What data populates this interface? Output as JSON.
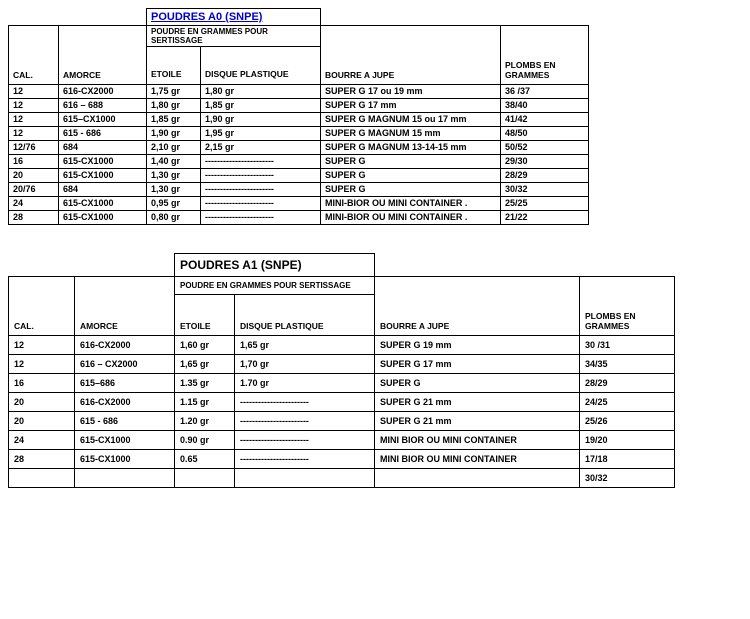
{
  "table1": {
    "title": "POUDRES A0 (SNPE)",
    "subheader": "POUDRE EN GRAMMES POUR SERTISSAGE",
    "headers": {
      "cal": "CAL.",
      "amorce": "AMORCE",
      "etoile": "ETOILE",
      "disque": "DISQUE PLASTIQUE",
      "bourre": "BOURRE A JUPE",
      "plombs": "PLOMBS EN GRAMMES"
    },
    "rows": [
      {
        "cal": "12",
        "am": "616-CX2000",
        "et": "1,75 gr",
        "dp": "1,80 gr",
        "bj": "SUPER G 17 ou 19 mm",
        "pl": "36 /37"
      },
      {
        "cal": "12",
        "am": "616 – 688",
        "et": "1,80 gr",
        "dp": "1,85 gr",
        "bj": "SUPER G 17 mm",
        "pl": "38/40"
      },
      {
        "cal": "12",
        "am": "615–CX1000",
        "et": "1,85 gr",
        "dp": "1,90 gr",
        "bj": "SUPER G MAGNUM 15 ou 17 mm",
        "pl": "41/42"
      },
      {
        "cal": "12",
        "am": "615 - 686",
        "et": "1,90 gr",
        "dp": "1,95 gr",
        "bj": "SUPER G MAGNUM 15 mm",
        "pl": "48/50"
      },
      {
        "cal": "12/76",
        "am": "684",
        "et": "2,10 gr",
        "dp": "2,15 gr",
        "bj": "SUPER G MAGNUM 13-14-15 mm",
        "pl": "50/52"
      },
      {
        "cal": "16",
        "am": "615-CX1000",
        "et": "1,40 gr",
        "dp": "-----------------------",
        "bj": "SUPER G",
        "pl": "29/30"
      },
      {
        "cal": "20",
        "am": "615-CX1000",
        "et": "1,30 gr",
        "dp": "-----------------------",
        "bj": "SUPER G",
        "pl": "28/29"
      },
      {
        "cal": "20/76",
        "am": "684",
        "et": "1,30 gr",
        "dp": "-----------------------",
        "bj": "SUPER G",
        "pl": "30/32"
      },
      {
        "cal": "24",
        "am": "615-CX1000",
        "et": "0,95 gr",
        "dp": "-----------------------",
        "bj": "MINI-BIOR OU MINI CONTAINER .",
        "pl": "25/25"
      },
      {
        "cal": "28",
        "am": "615-CX1000",
        "et": "0,80 gr",
        "dp": "-----------------------",
        "bj": "MINI-BIOR OU MINI CONTAINER .",
        "pl": "21/22"
      }
    ]
  },
  "table2": {
    "title": "POUDRES A1 (SNPE)",
    "subheader": "POUDRE EN GRAMMES POUR SERTISSAGE",
    "headers": {
      "cal": "CAL.",
      "amorce": "AMORCE",
      "etoile": "ETOILE",
      "disque": "DISQUE PLASTIQUE",
      "bourre": "BOURRE A JUPE",
      "plombs": "PLOMBS EN GRAMMES"
    },
    "rows": [
      {
        "cal": "12",
        "am": "616-CX2000",
        "et": "1,60 gr",
        "dp": "1,65 gr",
        "bj": "SUPER G 19 mm",
        "pl": "30 /31"
      },
      {
        "cal": "12",
        "am": "616 – CX2000",
        "et": "1,65 gr",
        "dp": "1,70 gr",
        "bj": "SUPER G 17 mm",
        "pl": "34/35"
      },
      {
        "cal": "16",
        "am": "615–686",
        "et": "1.35 gr",
        "dp": "1.70 gr",
        "bj": "SUPER G",
        "pl": "28/29"
      },
      {
        "cal": "20",
        "am": "616-CX2000",
        "et": "1.15 gr",
        "dp": "-----------------------",
        "bj": "SUPER G 21 mm",
        "pl": "24/25"
      },
      {
        "cal": "20",
        "am": "615 - 686",
        "et": "1.20 gr",
        "dp": "-----------------------",
        "bj": "SUPER G 21 mm",
        "pl": "25/26"
      },
      {
        "cal": "24",
        "am": "615-CX1000",
        "et": "0.90 gr",
        "dp": "-----------------------",
        "bj": "MINI BIOR OU MINI CONTAINER",
        "pl": "19/20"
      },
      {
        "cal": "28",
        "am": "615-CX1000",
        "et": "0.65",
        "dp": "-----------------------",
        "bj": "MINI BIOR OU MINI CONTAINER",
        "pl": "17/18"
      },
      {
        "cal": "",
        "am": "",
        "et": "",
        "dp": "",
        "bj": "",
        "pl": "30/32"
      }
    ]
  }
}
